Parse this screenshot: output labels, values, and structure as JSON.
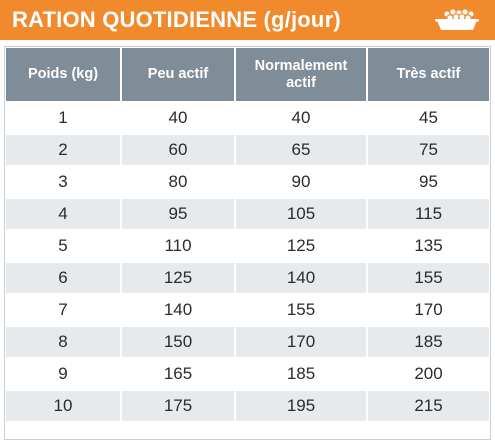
{
  "header": {
    "title": "RATION QUOTIDIENNE (g/jour)",
    "icon": "food-bowl-icon",
    "color": "#f08a2c"
  },
  "table": {
    "header_color": "#7f8d98",
    "stripe_color": "#e6eaed",
    "columns": [
      "Poids (kg)",
      "Peu actif",
      "Normalement actif",
      "Très actif"
    ],
    "rows": [
      [
        "1",
        "40",
        "40",
        "45"
      ],
      [
        "2",
        "60",
        "65",
        "75"
      ],
      [
        "3",
        "80",
        "90",
        "95"
      ],
      [
        "4",
        "95",
        "105",
        "115"
      ],
      [
        "5",
        "110",
        "125",
        "135"
      ],
      [
        "6",
        "125",
        "140",
        "155"
      ],
      [
        "7",
        "140",
        "155",
        "170"
      ],
      [
        "8",
        "150",
        "170",
        "185"
      ],
      [
        "9",
        "165",
        "185",
        "200"
      ],
      [
        "10",
        "175",
        "195",
        "215"
      ]
    ]
  }
}
